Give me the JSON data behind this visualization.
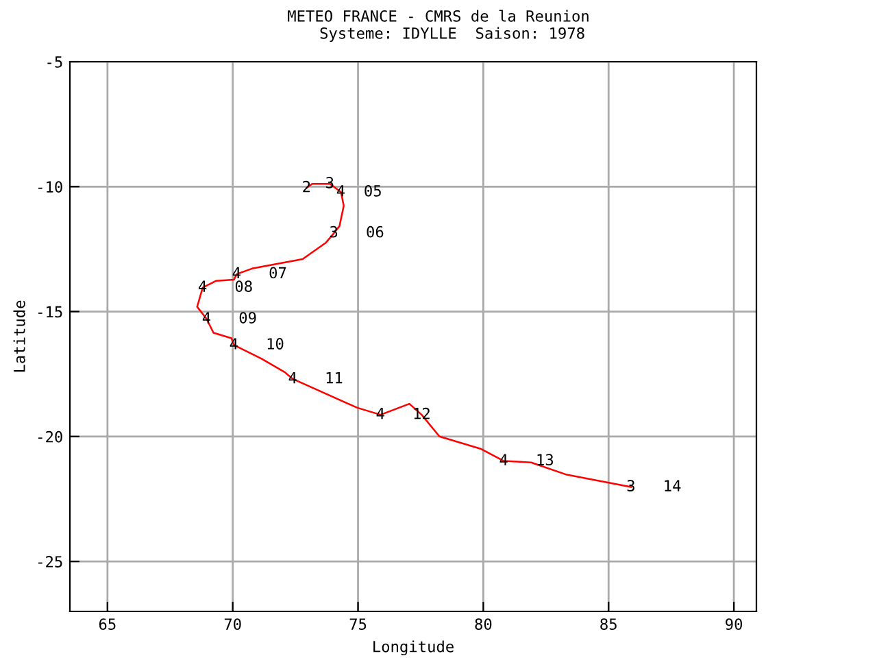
{
  "chart_data": {
    "type": "line",
    "title": "METEO FRANCE - CMRS de la Reunion\n   Systeme: IDYLLE  Saison: 1978",
    "xlabel": "Longitude",
    "ylabel": "Latitude",
    "x": [
      72.95,
      73.17,
      73.88,
      74.32,
      74.43,
      74.26,
      74.04,
      73.72,
      72.79,
      70.77,
      70.16,
      70.05,
      69.34,
      68.8,
      68.58,
      68.96,
      69.23,
      69.95,
      70.05,
      71.15,
      72.08,
      72.4,
      74.97,
      75.9,
      77.05,
      77.54,
      78.25,
      79.89,
      80.82,
      81.91,
      83.33,
      85.9
    ],
    "series": [
      {
        "color": "#ff0000",
        "values": [
          -10.05,
          -9.89,
          -9.89,
          -10.22,
          -10.77,
          -11.58,
          -11.86,
          -12.24,
          -12.9,
          -13.28,
          -13.5,
          -13.72,
          -13.77,
          -14.04,
          -14.81,
          -15.3,
          -15.85,
          -16.07,
          -16.34,
          -16.89,
          -17.43,
          -17.7,
          -18.85,
          -19.13,
          -18.69,
          -19.13,
          -20.0,
          -20.49,
          -20.98,
          -21.04,
          -21.53,
          -22.02
        ]
      }
    ],
    "xlim": [
      63.5,
      90.9
    ],
    "ylim": [
      -27,
      -5
    ],
    "xticks": [
      65,
      70,
      75,
      80,
      85,
      90
    ],
    "yticks": [
      -25,
      -20,
      -15,
      -10,
      -5
    ],
    "grid": true,
    "legend": false,
    "marker": "none",
    "line_style": "solid",
    "annotations": [
      {
        "text": "2",
        "x": 72.95,
        "y": -10.05
      },
      {
        "text": "3",
        "x": 73.88,
        "y": -9.89
      },
      {
        "text": "4  05",
        "x": 74.32,
        "y": -10.22
      },
      {
        "text": "3   06",
        "x": 74.04,
        "y": -11.86
      },
      {
        "text": "4   07",
        "x": 70.16,
        "y": -13.5
      },
      {
        "text": "4   08",
        "x": 68.8,
        "y": -14.04
      },
      {
        "text": "4   09",
        "x": 68.96,
        "y": -15.3
      },
      {
        "text": "4   10",
        "x": 70.05,
        "y": -16.34
      },
      {
        "text": "4   11",
        "x": 72.4,
        "y": -17.7
      },
      {
        "text": "4   12",
        "x": 75.9,
        "y": -19.13
      },
      {
        "text": "4   13",
        "x": 80.82,
        "y": -20.98
      },
      {
        "text": "3   14",
        "x": 85.9,
        "y": -22.02
      }
    ]
  }
}
